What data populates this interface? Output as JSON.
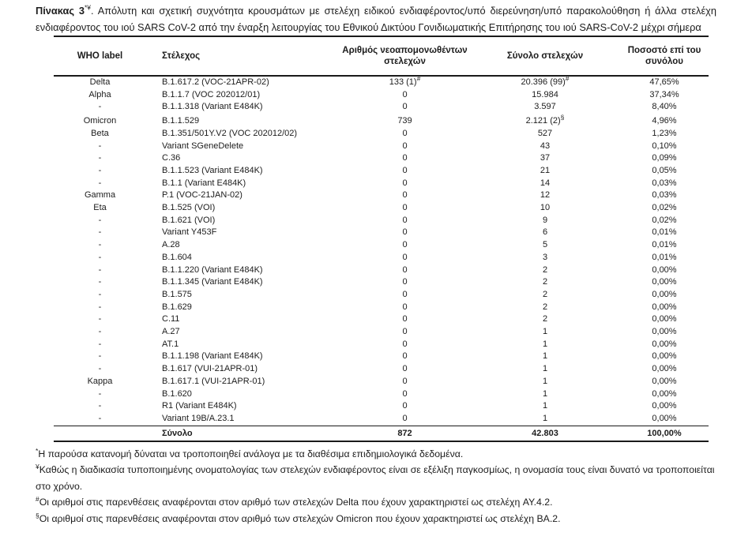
{
  "title": {
    "bold": "Πίνακας 3",
    "sup": "*¥",
    "rest": ". Απόλυτη και σχετική συχνότητα κρουσμάτων με στελέχη ειδικού ενδιαφέροντος/υπό διερεύνηση/υπό παρακολούθηση ή άλλα στελέχη ενδιαφέροντος του ιού SARS CoV-2 από την έναρξη λειτουργίας του Εθνικού Δικτύου Γονιδιωματικής Επιτήρησης του ιού SARS-CoV-2 μέχρι σήμερα"
  },
  "table": {
    "headers": [
      "WHO label",
      "Στέλεχος",
      "Αριθμός νεοαπομονωθέντων στελεχών",
      "Σύνολο στελεχών",
      "Ποσοστό επί του συνόλου"
    ],
    "rows": [
      {
        "who": "Delta",
        "strain": "B.1.617.2 (VOC-21APR-02)",
        "new": "133 (1)",
        "new_sup": "#",
        "total": "20.396 (99)",
        "total_sup": "#",
        "pct": "47,65%"
      },
      {
        "who": "Alpha",
        "strain": "B.1.1.7 (VOC 202012/01)",
        "new": "0",
        "total": "15.984",
        "pct": "37,34%"
      },
      {
        "who": "-",
        "strain": "B.1.1.318 (Variant E484K)",
        "new": "0",
        "total": "3.597",
        "pct": "8,40%"
      },
      {
        "who": "Omicron",
        "strain": "B.1.1.529",
        "new": "739",
        "total": "2.121 (2)",
        "total_sup": "§",
        "pct": "4,96%"
      },
      {
        "who": "Beta",
        "strain": "B.1.351/501Y.V2 (VOC 202012/02)",
        "new": "0",
        "total": "527",
        "pct": "1,23%"
      },
      {
        "who": "-",
        "strain": "Variant SGeneDelete",
        "new": "0",
        "total": "43",
        "pct": "0,10%"
      },
      {
        "who": "-",
        "strain": "C.36",
        "new": "0",
        "total": "37",
        "pct": "0,09%"
      },
      {
        "who": "-",
        "strain": "B.1.1.523 (Variant E484K)",
        "new": "0",
        "total": "21",
        "pct": "0,05%"
      },
      {
        "who": "-",
        "strain": "B.1.1 (Variant E484K)",
        "new": "0",
        "total": "14",
        "pct": "0,03%"
      },
      {
        "who": "Gamma",
        "strain": "P.1 (VOC-21JAN-02)",
        "new": "0",
        "total": "12",
        "pct": "0,03%"
      },
      {
        "who": "Eta",
        "strain": "B.1.525 (VOI)",
        "new": "0",
        "total": "10",
        "pct": "0,02%"
      },
      {
        "who": "-",
        "strain": "B.1.621 (VOI)",
        "new": "0",
        "total": "9",
        "pct": "0,02%"
      },
      {
        "who": "-",
        "strain": "Variant Y453F",
        "new": "0",
        "total": "6",
        "pct": "0,01%"
      },
      {
        "who": "-",
        "strain": "A.28",
        "new": "0",
        "total": "5",
        "pct": "0,01%"
      },
      {
        "who": "-",
        "strain": "B.1.604",
        "new": "0",
        "total": "3",
        "pct": "0,01%"
      },
      {
        "who": "-",
        "strain": "B.1.1.220 (Variant E484K)",
        "new": "0",
        "total": "2",
        "pct": "0,00%"
      },
      {
        "who": "-",
        "strain": "B.1.1.345 (Variant E484K)",
        "new": "0",
        "total": "2",
        "pct": "0,00%"
      },
      {
        "who": "-",
        "strain": "B.1.575",
        "new": "0",
        "total": "2",
        "pct": "0,00%"
      },
      {
        "who": "-",
        "strain": "B.1.629",
        "new": "0",
        "total": "2",
        "pct": "0,00%"
      },
      {
        "who": "-",
        "strain": "C.11",
        "new": "0",
        "total": "2",
        "pct": "0,00%"
      },
      {
        "who": "-",
        "strain": "A.27",
        "new": "0",
        "total": "1",
        "pct": "0,00%"
      },
      {
        "who": "-",
        "strain": "AT.1",
        "new": "0",
        "total": "1",
        "pct": "0,00%"
      },
      {
        "who": "-",
        "strain": "B.1.1.198 (Variant E484K)",
        "new": "0",
        "total": "1",
        "pct": "0,00%"
      },
      {
        "who": "-",
        "strain": "B.1.617 (VUI-21APR-01)",
        "new": "0",
        "total": "1",
        "pct": "0,00%"
      },
      {
        "who": "Kappa",
        "strain": "B.1.617.1 (VUI-21APR-01)",
        "new": "0",
        "total": "1",
        "pct": "0,00%"
      },
      {
        "who": "-",
        "strain": "B.1.620",
        "new": "0",
        "total": "1",
        "pct": "0,00%"
      },
      {
        "who": "-",
        "strain": "R1 (Variant E484K)",
        "new": "0",
        "total": "1",
        "pct": "0,00%"
      },
      {
        "who": "-",
        "strain": "Variant 19B/A.23.1",
        "new": "0",
        "total": "1",
        "pct": "0,00%"
      }
    ],
    "total": {
      "strain": "Σύνολο",
      "new": "872",
      "total": "42.803",
      "pct": "100,00%"
    }
  },
  "footnotes": [
    {
      "sup": "*",
      "text": "Η παρούσα κατανομή δύναται να τροποποιηθεί ανάλογα με τα διαθέσιμα επιδημιολογικά δεδομένα."
    },
    {
      "sup": "¥",
      "text": "Καθώς η διαδικασία τυποποιημένης ονοματολογίας των στελεχών ενδιαφέροντος είναι σε εξέλιξη παγκοσμίως, η ονομασία τους είναι δυνατό να τροποποιείται στο χρόνο."
    },
    {
      "sup": "#",
      "text": "Οι αριθμοί στις παρενθέσεις αναφέρονται στον αριθμό των στελεχών Delta που έχουν χαρακτηριστεί ως στελέχη AY.4.2."
    },
    {
      "sup": "§",
      "text": "Οι αριθμοί στις παρενθέσεις αναφέρονται στον αριθμό των στελεχών Omicron που έχουν χαρακτηριστεί ως στελέχη BA.2."
    }
  ],
  "colors": {
    "text": "#1c1c1c",
    "rule": "#1a1a1a",
    "background": "#ffffff"
  }
}
